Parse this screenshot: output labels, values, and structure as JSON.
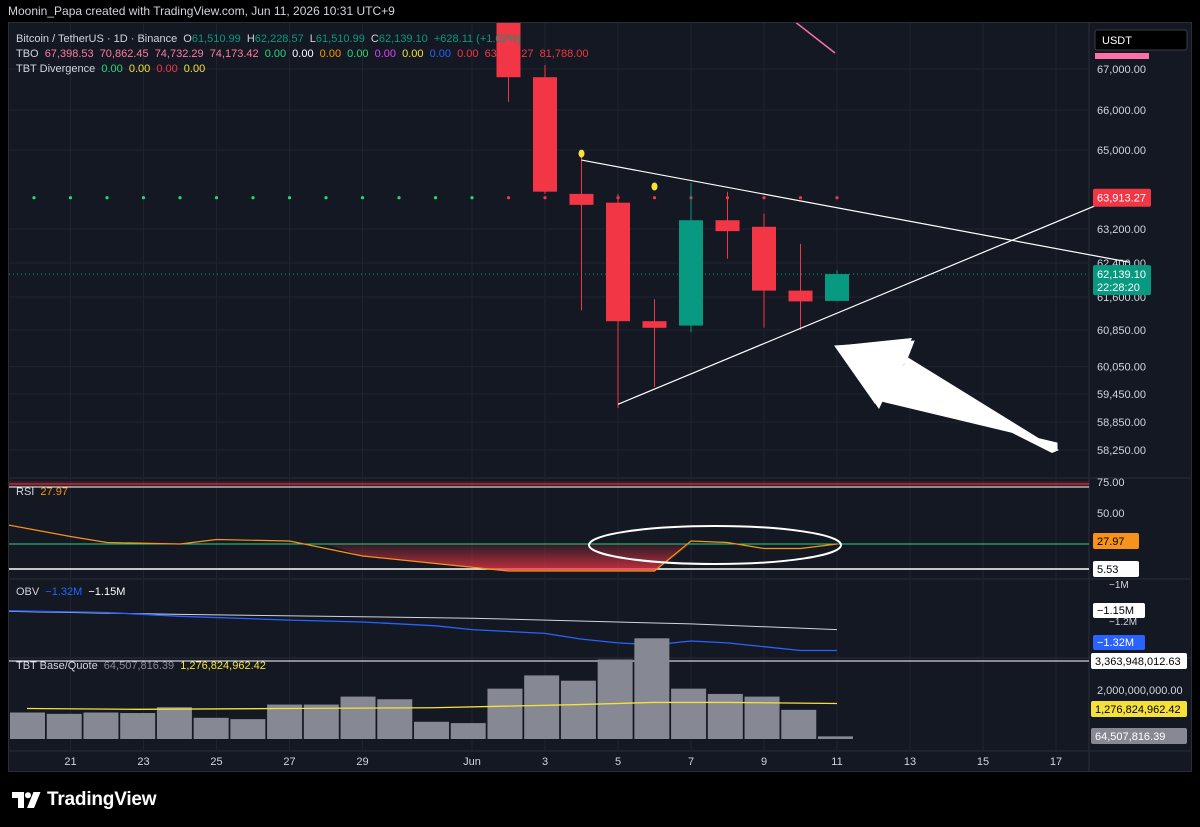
{
  "header": {
    "credit": "Moonin_Papa created with TradingView.com, Jun 11, 2026 10:31 UTC+9"
  },
  "legend": {
    "symbol": "Bitcoin / TetherUS · 1D · Binance",
    "ohlc": {
      "o_label": "O",
      "o": "61,510.99",
      "h_label": "H",
      "h": "62,228.57",
      "l_label": "L",
      "l": "61,510.99",
      "c_label": "C",
      "c": "62,139.10",
      "change": "+628.11 (+1.02%)"
    },
    "tbo": {
      "name": "TBO",
      "values": [
        "67,398.53",
        "70,862.45",
        "74,732.29",
        "74,173.42",
        "0.00",
        "0.00",
        "0.00",
        "0.00",
        "0.00",
        "0.00",
        "0.00",
        "0.00",
        "63,913.27",
        "81,788.00"
      ]
    },
    "tbt_div": {
      "name": "TBT Divergence",
      "values": [
        "0.00",
        "0.00",
        "0.00",
        "0.00"
      ]
    },
    "rsi": {
      "name": "RSI",
      "value": "27.97"
    },
    "obv": {
      "name": "OBV",
      "value1": "−1.32M",
      "value2": "−1.15M"
    },
    "vol": {
      "name": "TBT Base/Quote",
      "value1": "64,507,816.39",
      "value2": "1,276,824,962.42"
    }
  },
  "currency_badge": "USDT",
  "colors": {
    "bg": "#141823",
    "up": "#089981",
    "down": "#f23645",
    "grid": "#1f2330",
    "text": "#d1d4dc",
    "rsi": "#f7931a",
    "obv": "#2962ff",
    "volume": "#868993",
    "yellow": "#f5e13a"
  },
  "chart_data": {
    "type": "candlestick",
    "price_axis_ticks": [
      "67,000.00",
      "66,000.00",
      "65,000.00",
      "63,200.00",
      "62,400.00",
      "61,600.00",
      "60,850.00",
      "60,050.00",
      "59,450.00",
      "58,850.00",
      "58,250.00"
    ],
    "price_labels": [
      {
        "value": "63,913.27",
        "color": "#f23645"
      },
      {
        "value": "62,139.10",
        "sub": "22:28:20",
        "color": "#089981"
      }
    ],
    "x_labels": [
      {
        "day": 21,
        "label": "21"
      },
      {
        "day": 23,
        "label": "23"
      },
      {
        "day": 25,
        "label": "25"
      },
      {
        "day": 27,
        "label": "27"
      },
      {
        "day": 29,
        "label": "29"
      },
      {
        "day": 32,
        "label": "Jun"
      },
      {
        "day": 34,
        "label": "3"
      },
      {
        "day": 36,
        "label": "5"
      },
      {
        "day": 38,
        "label": "7"
      },
      {
        "day": 40,
        "label": "9"
      },
      {
        "day": 42,
        "label": "11"
      },
      {
        "day": 44,
        "label": "13"
      },
      {
        "day": 46,
        "label": "15"
      },
      {
        "day": 48,
        "label": "17"
      }
    ],
    "candles": [
      {
        "day": 33,
        "o": 68200,
        "h": 68500,
        "l": 66200,
        "c": 66800
      },
      {
        "day": 34,
        "o": 66800,
        "h": 67100,
        "l": 64000,
        "c": 64050
      },
      {
        "day": 35,
        "o": 64000,
        "h": 64850,
        "l": 61300,
        "c": 63750
      },
      {
        "day": 36,
        "o": 63800,
        "h": 64000,
        "l": 59150,
        "c": 61050
      },
      {
        "day": 37,
        "o": 61050,
        "h": 61550,
        "l": 59600,
        "c": 60900
      },
      {
        "day": 38,
        "o": 60950,
        "h": 64250,
        "l": 60800,
        "c": 63400
      },
      {
        "day": 39,
        "o": 63400,
        "h": 64050,
        "l": 62500,
        "c": 63150
      },
      {
        "day": 40,
        "o": 63250,
        "h": 63550,
        "l": 60900,
        "c": 61750
      },
      {
        "day": 41,
        "o": 61750,
        "h": 62850,
        "l": 60850,
        "c": 61500
      },
      {
        "day": 42,
        "o": 61511,
        "h": 62229,
        "l": 61511,
        "c": 62139
      }
    ],
    "trendlines": [
      {
        "from": {
          "day": 35,
          "price": 64770
        },
        "to": {
          "day": 50,
          "price": 62420
        }
      },
      {
        "from": {
          "day": 36,
          "price": 59230
        },
        "to": {
          "day": 50,
          "price": 64050
        }
      }
    ],
    "dotted_level": {
      "price": 63913.27,
      "from_day": 12,
      "to_day": 42
    },
    "rsi": {
      "levels": [
        "75.00",
        "50.00",
        "5.53"
      ],
      "current": "27.97",
      "values": [
        [
          12,
          40
        ],
        [
          14,
          42
        ],
        [
          15,
          34
        ],
        [
          16,
          42
        ],
        [
          18,
          47
        ],
        [
          19,
          44
        ],
        [
          21,
          35
        ],
        [
          22,
          31
        ],
        [
          24,
          30
        ],
        [
          25,
          33
        ],
        [
          27,
          32
        ],
        [
          28,
          27
        ],
        [
          29,
          22
        ],
        [
          31,
          17
        ],
        [
          33,
          12
        ],
        [
          35,
          12
        ],
        [
          37,
          12
        ],
        [
          38,
          32
        ],
        [
          39,
          31
        ],
        [
          40,
          27
        ],
        [
          41,
          27
        ],
        [
          42,
          30
        ]
      ]
    },
    "obv": {
      "values": [
        [
          12,
          -1.18
        ],
        [
          16,
          -1.15
        ],
        [
          19,
          -1.14
        ],
        [
          22,
          -1.15
        ],
        [
          24,
          -1.17
        ],
        [
          27,
          -1.19
        ],
        [
          29,
          -1.2
        ],
        [
          31,
          -1.22
        ],
        [
          32,
          -1.24
        ],
        [
          34,
          -1.26
        ],
        [
          35,
          -1.29
        ],
        [
          36,
          -1.31
        ],
        [
          37,
          -1.32
        ],
        [
          38,
          -1.3
        ],
        [
          39,
          -1.31
        ],
        [
          40,
          -1.33
        ],
        [
          41,
          -1.35
        ],
        [
          42,
          -1.35
        ]
      ],
      "ma": [
        [
          12,
          -1.17
        ],
        [
          18,
          -1.14
        ],
        [
          24,
          -1.16
        ],
        [
          32,
          -1.18
        ],
        [
          38,
          -1.21
        ],
        [
          42,
          -1.24
        ]
      ],
      "ticks": [
        "−1M",
        "−1.2M"
      ],
      "labels": [
        "−1.15M",
        "−1.32M"
      ]
    },
    "volume": {
      "values": [
        [
          12,
          1.0
        ],
        [
          13,
          0.95
        ],
        [
          14,
          1.0
        ],
        [
          15,
          0.98
        ],
        [
          16,
          1.2
        ],
        [
          17,
          0.8
        ],
        [
          18,
          0.75
        ],
        [
          19,
          1.3
        ],
        [
          20,
          1.3
        ],
        [
          21,
          1.6
        ],
        [
          22,
          1.5
        ],
        [
          23,
          0.65
        ],
        [
          24,
          0.6
        ],
        [
          25,
          1.9
        ],
        [
          26,
          2.4
        ],
        [
          27,
          2.2
        ],
        [
          28,
          3.0
        ],
        [
          29,
          3.8
        ],
        [
          30,
          1.9
        ],
        [
          31,
          1.7
        ],
        [
          32,
          1.6
        ],
        [
          33,
          1.1
        ],
        [
          34,
          0.1
        ]
      ],
      "ma": [
        [
          12,
          1.15
        ],
        [
          15,
          1.12
        ],
        [
          19,
          1.15
        ],
        [
          23,
          1.18
        ],
        [
          27,
          1.3
        ],
        [
          29,
          1.38
        ],
        [
          31,
          1.38
        ],
        [
          34,
          1.34
        ]
      ],
      "ticks": [
        "2,000,000,000.00"
      ],
      "labels": [
        "3,363,948,012.63",
        "1,276,824,962.42",
        "64,507,816.39"
      ]
    }
  }
}
